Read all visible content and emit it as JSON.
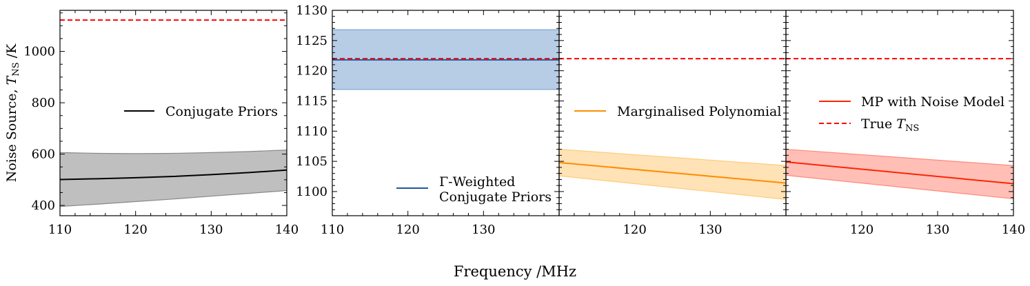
{
  "figure": {
    "xlabel": "Frequency /MHz"
  },
  "chart_data": [
    {
      "type": "line",
      "panel": "Conjugate Priors",
      "ylabel": "Noise Source, T_NS /K",
      "xlim": [
        110,
        140
      ],
      "ylim": [
        360,
        1160
      ],
      "xticks": [
        110,
        120,
        130,
        140
      ],
      "yticks": [
        400,
        600,
        800,
        1000
      ],
      "true_value": 1122,
      "series": [
        {
          "name": "Conjugate Priors",
          "color": "#000000",
          "band_color": "#808080",
          "x": [
            110,
            115,
            120,
            125,
            130,
            135,
            140
          ],
          "mean": [
            501,
            504,
            508,
            513,
            520,
            528,
            538
          ],
          "lower": [
            396,
            405,
            415,
            425,
            436,
            447,
            458
          ],
          "upper": [
            606,
            603,
            602,
            603,
            606,
            610,
            616
          ]
        }
      ],
      "legend_position": "center-right"
    },
    {
      "type": "line",
      "panel": "Γ-Weighted Conjugate Priors",
      "xlim": [
        110,
        140
      ],
      "ylim": [
        1096,
        1130
      ],
      "xticks": [
        110,
        120,
        130
      ],
      "yticks": [
        1100,
        1105,
        1110,
        1115,
        1120,
        1125,
        1130
      ],
      "true_value": 1122,
      "series": [
        {
          "name_lines": [
            "Γ-Weighted",
            "Conjugate Priors"
          ],
          "color": "#1f5a9c",
          "band_color": "#6f9ccd",
          "x": [
            110,
            140
          ],
          "mean": [
            1121.8,
            1121.8
          ],
          "lower": [
            1116.9,
            1116.9
          ],
          "upper": [
            1126.8,
            1126.8
          ]
        }
      ],
      "legend_position": "lower-right"
    },
    {
      "type": "line",
      "panel": "Marginalised Polynomial",
      "xlim": [
        110,
        140
      ],
      "ylim": [
        1096,
        1130
      ],
      "xticks": [
        120,
        130
      ],
      "true_value": 1122,
      "series": [
        {
          "name": "Marginalised Polynomial",
          "color": "#ff8c00",
          "band_color": "#ffc66e",
          "x": [
            110,
            140
          ],
          "mean": [
            1104.8,
            1101.4
          ],
          "lower": [
            1102.6,
            1098.7
          ],
          "upper": [
            1107.0,
            1104.3
          ]
        }
      ],
      "legend_position": "center"
    },
    {
      "type": "line",
      "panel": "MP with Noise Model",
      "xlim": [
        110,
        140
      ],
      "ylim": [
        1096,
        1130
      ],
      "xticks": [
        120,
        130,
        140
      ],
      "true_value": 1122,
      "series": [
        {
          "name": "MP with Noise Model",
          "color": "#ff2400",
          "band_color": "#ff8070",
          "x": [
            110,
            140
          ],
          "mean": [
            1104.9,
            1101.3
          ],
          "lower": [
            1102.7,
            1098.8
          ],
          "upper": [
            1107.0,
            1104.3
          ]
        }
      ],
      "true_legend": "True T_NS",
      "legend_position": "upper-right"
    }
  ]
}
